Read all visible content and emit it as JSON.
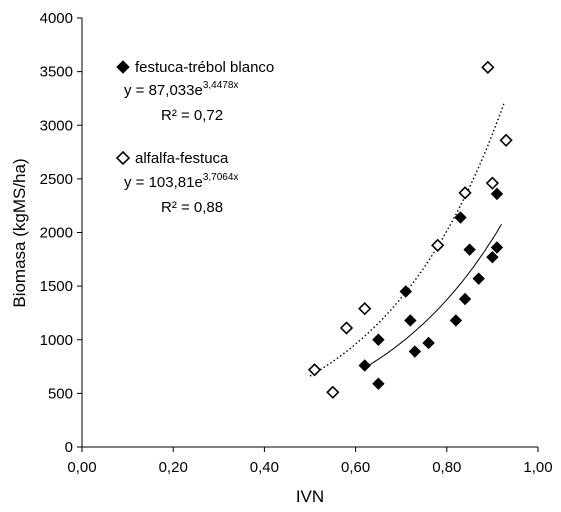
{
  "chart_data": {
    "type": "scatter",
    "xlabel": "IVN",
    "ylabel": "Biomasa (kgMS/ha)",
    "xlim": [
      0,
      1
    ],
    "ylim": [
      0,
      4000
    ],
    "x_ticks": [
      "0,00",
      "0,20",
      "0,40",
      "0,60",
      "0,80",
      "1,00"
    ],
    "y_ticks": [
      "0",
      "500",
      "1000",
      "1500",
      "2000",
      "2500",
      "3000",
      "3500",
      "4000"
    ],
    "grid": false,
    "legend_position": "top-left",
    "series": [
      {
        "name": "festuca-trébol blanco",
        "marker": "filled-diamond",
        "color": "#000000",
        "equation_main": "y = 87,033e",
        "equation_exp": "3,4478x",
        "r2": "R² = 0,72",
        "trend": {
          "a": 87.033,
          "b": 3.4478,
          "x_range": [
            0.62,
            0.92
          ],
          "line_style": "solid"
        },
        "points": [
          {
            "x": 0.62,
            "y": 760
          },
          {
            "x": 0.65,
            "y": 590
          },
          {
            "x": 0.65,
            "y": 1000
          },
          {
            "x": 0.71,
            "y": 1450
          },
          {
            "x": 0.72,
            "y": 1180
          },
          {
            "x": 0.73,
            "y": 890
          },
          {
            "x": 0.76,
            "y": 970
          },
          {
            "x": 0.82,
            "y": 1180
          },
          {
            "x": 0.83,
            "y": 2140
          },
          {
            "x": 0.84,
            "y": 1380
          },
          {
            "x": 0.85,
            "y": 1840
          },
          {
            "x": 0.87,
            "y": 1570
          },
          {
            "x": 0.9,
            "y": 1770
          },
          {
            "x": 0.91,
            "y": 1860
          },
          {
            "x": 0.91,
            "y": 2360
          }
        ]
      },
      {
        "name": "alfalfa-festuca",
        "marker": "open-diamond",
        "color": "#000000",
        "equation_main": "y = 103,81e",
        "equation_exp": "3,7064x",
        "r2": "R² = 0,88",
        "trend": {
          "a": 103.81,
          "b": 3.7064,
          "x_range": [
            0.5,
            0.925
          ],
          "line_style": "dotted"
        },
        "points": [
          {
            "x": 0.51,
            "y": 720
          },
          {
            "x": 0.55,
            "y": 510
          },
          {
            "x": 0.58,
            "y": 1110
          },
          {
            "x": 0.62,
            "y": 1290
          },
          {
            "x": 0.78,
            "y": 1880
          },
          {
            "x": 0.84,
            "y": 2370
          },
          {
            "x": 0.89,
            "y": 3540
          },
          {
            "x": 0.9,
            "y": 2460
          },
          {
            "x": 0.93,
            "y": 2860
          }
        ]
      }
    ]
  }
}
